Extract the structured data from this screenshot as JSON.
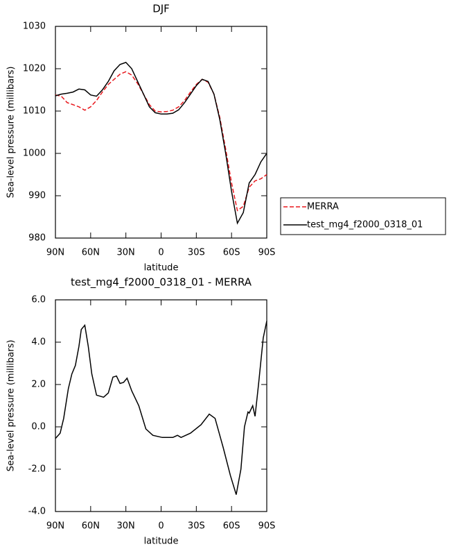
{
  "chart_data": [
    {
      "type": "line",
      "title": "DJF",
      "xlabel": "latitude",
      "ylabel": "Sea-level pressure (millibars)",
      "xlim": [
        90,
        -90
      ],
      "xticks": [
        {
          "value": 90,
          "label": "90N"
        },
        {
          "value": 60,
          "label": "60N"
        },
        {
          "value": 30,
          "label": "30N"
        },
        0,
        {
          "value": -30,
          "label": "30S"
        },
        {
          "value": -60,
          "label": "60S"
        },
        {
          "value": -90,
          "label": "90S"
        }
      ],
      "ylim": [
        980,
        1030
      ],
      "yticks": [
        980,
        990,
        1000,
        1010,
        1020,
        1030
      ],
      "legend": "right",
      "x": [
        90,
        85,
        80,
        75,
        70,
        65,
        60,
        55,
        50,
        45,
        40,
        35,
        30,
        25,
        20,
        15,
        10,
        5,
        0,
        -5,
        -10,
        -15,
        -20,
        -25,
        -30,
        -35,
        -40,
        -45,
        -50,
        -55,
        -60,
        -65,
        -70,
        -75,
        -80,
        -85,
        -90
      ],
      "series": [
        {
          "name": "MERRA",
          "color": "#e8161b",
          "dash": true,
          "values": [
            1013.8,
            1013.5,
            1012,
            1011.5,
            1011,
            1010.2,
            1011,
            1012.5,
            1014.5,
            1016.3,
            1017.5,
            1018.7,
            1019.3,
            1018.5,
            1016.5,
            1014,
            1011.5,
            1010,
            1009.8,
            1009.9,
            1010.2,
            1011,
            1012.5,
            1014.5,
            1016.3,
            1017.5,
            1016.8,
            1014,
            1008.5,
            1001,
            993,
            986.5,
            987.5,
            992,
            993.5,
            994,
            995
          ]
        },
        {
          "name": "test_mg4_f2000_0318_01",
          "color": "#000000",
          "dash": false,
          "values": [
            1013.6,
            1014,
            1014.2,
            1014.5,
            1015.2,
            1015,
            1013.8,
            1013.5,
            1015,
            1017,
            1019.5,
            1021,
            1021.5,
            1020,
            1017,
            1014,
            1011,
            1009.6,
            1009.3,
            1009.3,
            1009.5,
            1010.3,
            1012,
            1014,
            1016,
            1017.5,
            1017,
            1014,
            1008,
            1000,
            991,
            983.5,
            986,
            993,
            995,
            998,
            1000
          ]
        }
      ]
    },
    {
      "type": "line",
      "title": "test_mg4_f2000_0318_01 - MERRA",
      "xlabel": "latitude",
      "ylabel": "Sea-level pressure (millibars)",
      "xlim": [
        90,
        -90
      ],
      "xticks": [
        {
          "value": 90,
          "label": "90N"
        },
        {
          "value": 60,
          "label": "60N"
        },
        {
          "value": 30,
          "label": "30N"
        },
        0,
        {
          "value": -30,
          "label": "30S"
        },
        {
          "value": -60,
          "label": "60S"
        },
        {
          "value": -90,
          "label": "90S"
        }
      ],
      "ylim": [
        -4,
        6
      ],
      "yticks": [
        {
          "value": -4,
          "label": "-4.0"
        },
        {
          "value": -2,
          "label": "-2.0"
        },
        {
          "value": 0,
          "label": "0.0"
        },
        {
          "value": 2,
          "label": "2.0"
        },
        {
          "value": 4,
          "label": "4.0"
        },
        {
          "value": 6,
          "label": "6.0"
        }
      ],
      "x": [
        90,
        86,
        83,
        79,
        76,
        73,
        70,
        68,
        65,
        62,
        59,
        55,
        49,
        45,
        41,
        38,
        35,
        32,
        29,
        25,
        19,
        13,
        7,
        -1,
        -10,
        -14,
        -17,
        -25,
        -34,
        -41,
        -46,
        -53,
        -59,
        -64,
        -68,
        -71,
        -74,
        -75,
        -78,
        -80,
        -83,
        -87,
        -90
      ],
      "series": [
        {
          "color": "#000000",
          "dash": false,
          "values": [
            -0.55,
            -0.3,
            0.4,
            1.8,
            2.5,
            2.9,
            3.8,
            4.6,
            4.8,
            3.8,
            2.5,
            1.5,
            1.4,
            1.6,
            2.35,
            2.4,
            2.05,
            2.1,
            2.3,
            1.7,
            1.0,
            -0.1,
            -0.4,
            -0.5,
            -0.5,
            -0.4,
            -0.5,
            -0.3,
            0.1,
            0.6,
            0.4,
            -1.0,
            -2.3,
            -3.2,
            -2.0,
            0,
            0.7,
            0.65,
            1.0,
            0.5,
            2.0,
            4.2,
            5.0
          ]
        }
      ]
    }
  ]
}
